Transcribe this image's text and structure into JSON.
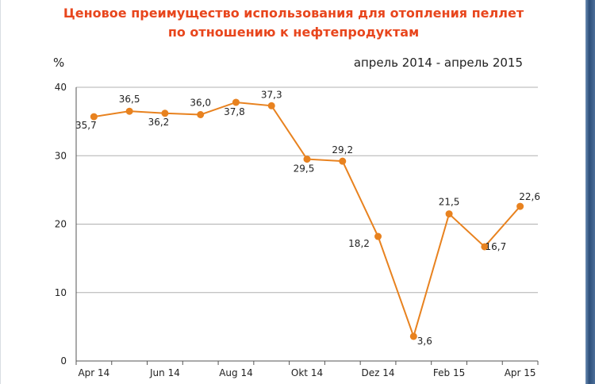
{
  "title_line1": "Ценовое преимущество использования для отопления пеллет",
  "title_line2": "по отношению к нефтепродуктам",
  "period": "апрель 2014 - апрель 2015",
  "colors": {
    "title": "#e8461d",
    "line": "#e8821f",
    "grid": "#b0b0b0"
  },
  "chart_data": {
    "type": "line",
    "title": "Ценовое преимущество использования для отопления пеллет по отношению к нефтепродуктам",
    "ylabel": "%",
    "ylim": [
      0,
      40
    ],
    "yticks": [
      0,
      10,
      20,
      30,
      40
    ],
    "x_tick_labels": [
      "Apr 14",
      "Jun 14",
      "Aug 14",
      "Okt 14",
      "Dez 14",
      "Feb 15",
      "Apr 15"
    ],
    "grid": true,
    "series": [
      {
        "values": [
          35.7,
          36.5,
          36.2,
          36.0,
          37.8,
          37.3,
          29.5,
          29.2,
          18.2,
          3.6,
          21.5,
          16.7,
          22.6
        ],
        "value_labels": [
          "35,7",
          "36,5",
          "36,2",
          "36,0",
          "37,8",
          "37,3",
          "29,5",
          "29,2",
          "18,2",
          "3,6",
          "21,5",
          "16,7",
          "22,6"
        ]
      }
    ]
  }
}
